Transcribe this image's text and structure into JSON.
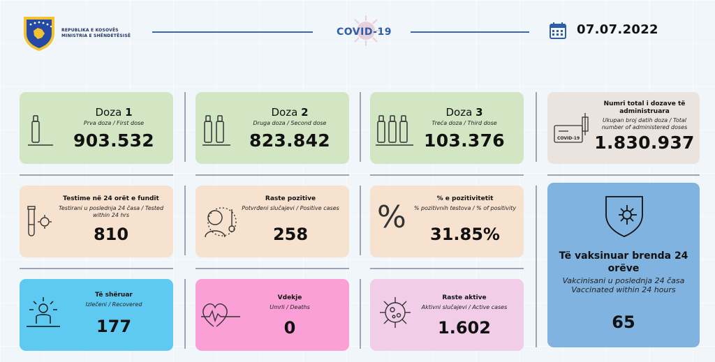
{
  "header": {
    "ministry_line1": "REPUBLIKA E KOSOVËS",
    "ministry_line2": "MINISTRIA E SHËNDETËSISË",
    "covid_label": "COVID-19",
    "date": "07.07.2022"
  },
  "doses": [
    {
      "title": "Doza",
      "number": "1",
      "subtitle": "Prva doza / First dose",
      "value": "903.532"
    },
    {
      "title": "Doza",
      "number": "2",
      "subtitle": "Druga doza / Second dose",
      "value": "823.842"
    },
    {
      "title": "Doza",
      "number": "3",
      "subtitle": "Treća doza / Third dose",
      "value": "103.376"
    }
  ],
  "total_doses": {
    "title": "Numri total i dozave të administruara",
    "subtitle": "Ukupan broj datih doza / Total number of administered doses",
    "value": "1.830.937",
    "badge": "COVID-19"
  },
  "tests": {
    "title": "Testime në 24 orët e fundit",
    "subtitle": "Testirani u poslednja 24 časa / Tested within 24 hrs",
    "value": "810"
  },
  "positive": {
    "title": "Raste pozitive",
    "subtitle": "Potvrđeni slučajevi / Positive cases",
    "value": "258"
  },
  "positivity": {
    "title": "% e pozitivitetit",
    "subtitle": "% pozitivnih testova / % of positivity",
    "value": "31.85%"
  },
  "recovered": {
    "title": "Të shëruar",
    "subtitle": "Izlečeni / Recovered",
    "value": "177"
  },
  "deaths": {
    "title": "Vdekje",
    "subtitle": "Umrli / Deaths",
    "value": "0"
  },
  "active": {
    "title": "Raste aktive",
    "subtitle": "Aktivni slučajevi / Active cases",
    "value": "1.602"
  },
  "vaccinated24": {
    "title": "Të vaksinuar brenda 24 orëve",
    "subtitle1": "Vakcinisani u poslednja 24 časa",
    "subtitle2": "Vaccinated within 24 hours",
    "value": "65"
  },
  "colors": {
    "green": "#d3e6c4",
    "peach": "#f7e2cf",
    "skyblue": "#5fcaf1",
    "pink": "#fb9fd7",
    "lilac": "#f1cde7",
    "grey": "#ebe4de",
    "blue": "#80b3df",
    "accent": "#2f5ea8"
  },
  "icons": [
    "kosovo-emblem-icon",
    "virus-icon",
    "calendar-icon",
    "vial-icon",
    "syringe-certificate-icon",
    "test-tube-icon",
    "thermometer-person-icon",
    "percent-icon",
    "shield-virus-icon",
    "recovered-person-icon",
    "heartbeat-icon",
    "virus-cell-icon"
  ]
}
